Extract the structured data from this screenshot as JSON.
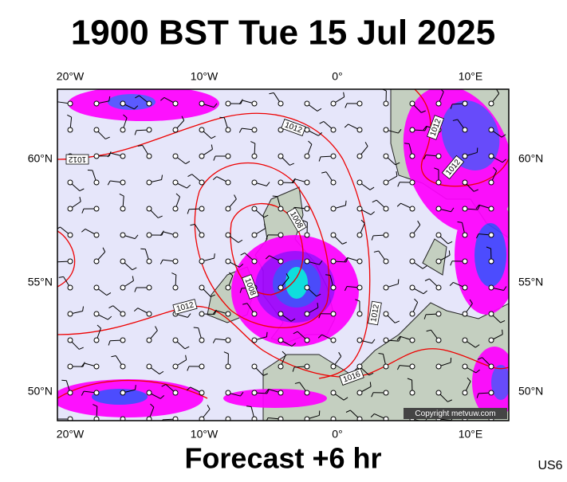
{
  "header": {
    "title": "1900 BST Tue 15 Jul 2025"
  },
  "map": {
    "lon_labels": [
      "20°W",
      "10°W",
      "0°",
      "10°E"
    ],
    "lat_labels": [
      "60°N",
      "55°N",
      "50°N"
    ],
    "isobar_labels": [
      "1012",
      "1012",
      "1012",
      "1012",
      "1008",
      "1008",
      "1012",
      "1012",
      "1016"
    ],
    "copyright": "Copyright metvuw.com"
  },
  "footer": {
    "title": "Forecast +6 hr",
    "code": "US6"
  }
}
